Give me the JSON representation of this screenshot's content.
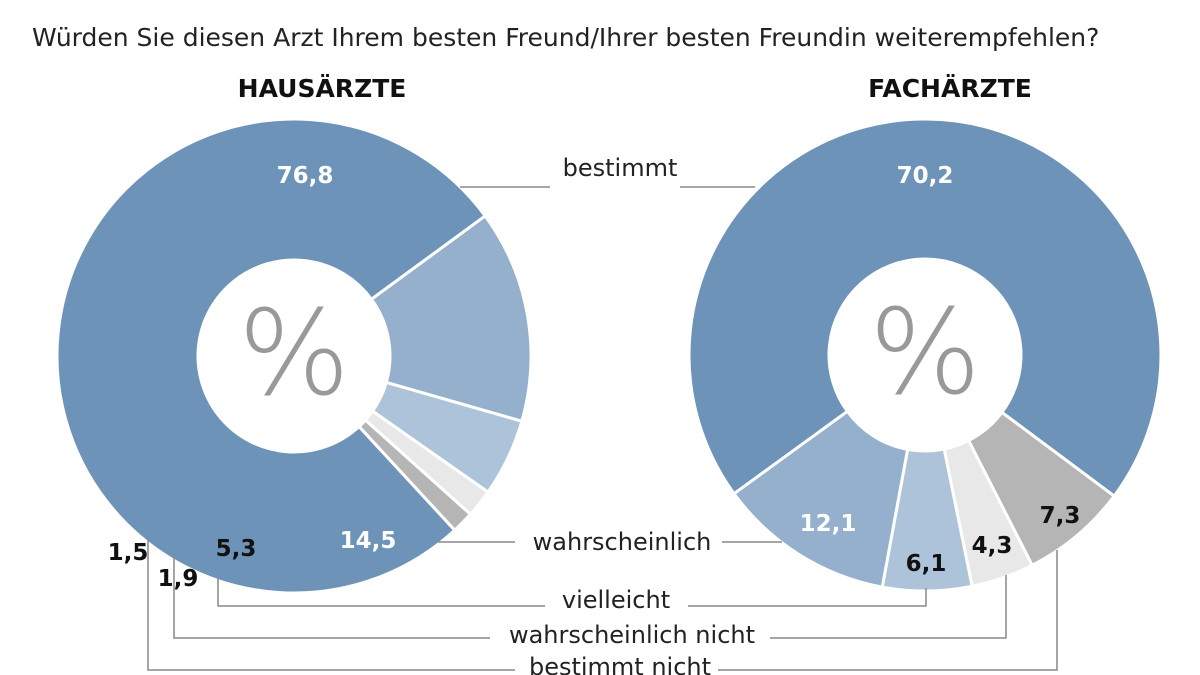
{
  "chart_data": [
    {
      "type": "pie",
      "variant": "donut",
      "title": "HAUSÄRZTE",
      "center_label": "%",
      "categories": [
        "bestimmt",
        "wahrscheinlich",
        "vielleicht",
        "wahrscheinlich nicht",
        "bestimmt nicht"
      ],
      "values": [
        76.8,
        14.5,
        5.3,
        1.9,
        1.5
      ],
      "value_labels": [
        "76,8",
        "14,5",
        "5,3",
        "1,9",
        "1,5"
      ]
    },
    {
      "type": "pie",
      "variant": "donut",
      "title": "FACHÄRZTE",
      "center_label": "%",
      "categories": [
        "bestimmt",
        "wahrscheinlich",
        "vielleicht",
        "wahrscheinlich nicht",
        "bestimmt nicht"
      ],
      "values": [
        70.2,
        12.1,
        6.1,
        4.3,
        7.3
      ],
      "value_labels": [
        "70,2",
        "12,1",
        "6,1",
        "4,3",
        "7,3"
      ]
    }
  ],
  "question": "Würden Sie diesen Arzt Ihrem besten Freund/Ihrer besten Freundin weiterempfehlen?",
  "legend_labels": [
    "bestimmt",
    "wahrscheinlich",
    "vielleicht",
    "wahrscheinlich nicht",
    "bestimmt nicht"
  ],
  "colors": {
    "bestimmt": "#6e93b9",
    "wahrscheinlich": "#94b0cc",
    "vielleicht": "#adc3da",
    "wahrscheinlich nicht": "#e8e8e8",
    "bestimmt nicht": "#b5b5b5",
    "center_symbol": "#999999"
  }
}
